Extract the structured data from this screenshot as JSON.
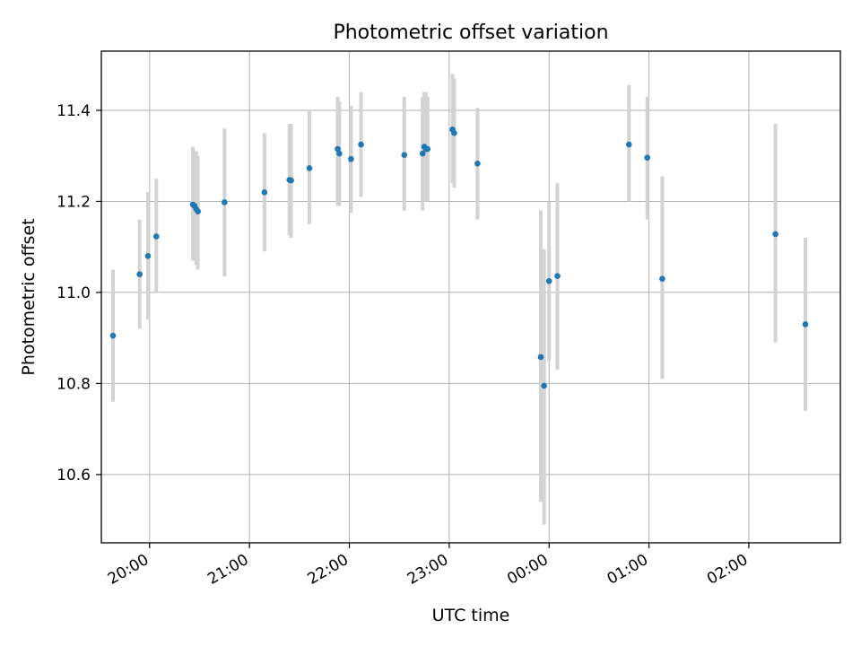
{
  "chart_data": {
    "type": "scatter",
    "title": "Photometric offset variation",
    "xlabel": "UTC time",
    "ylabel": "Photometric offset",
    "x_ticks": [
      "20:00",
      "21:00",
      "22:00",
      "23:00",
      "00:00",
      "01:00",
      "02:00"
    ],
    "y_ticks": [
      "10.6",
      "10.8",
      "11.0",
      "11.2",
      "11.4"
    ],
    "xlim": [
      "19:31",
      "02:55"
    ],
    "ylim": [
      10.45,
      11.53
    ],
    "grid": true,
    "legend": "none",
    "colors": {
      "points": "#1f77b4",
      "error_bars": "#d3d3d3",
      "grid": "#b0b0b0"
    },
    "points": [
      {
        "t": "19:38",
        "y": 10.905,
        "lo": 10.76,
        "hi": 11.05
      },
      {
        "t": "19:54",
        "y": 11.04,
        "lo": 10.92,
        "hi": 11.16
      },
      {
        "t": "19:59",
        "y": 11.08,
        "lo": 10.94,
        "hi": 11.22
      },
      {
        "t": "20:04",
        "y": 11.123,
        "lo": 11.0,
        "hi": 11.25
      },
      {
        "t": "20:26",
        "y": 11.193,
        "lo": 11.07,
        "hi": 11.32
      },
      {
        "t": "20:27",
        "y": 11.19,
        "lo": 11.07,
        "hi": 11.31
      },
      {
        "t": "20:28",
        "y": 11.183,
        "lo": 11.06,
        "hi": 11.31
      },
      {
        "t": "20:29",
        "y": 11.178,
        "lo": 11.05,
        "hi": 11.3
      },
      {
        "t": "20:45",
        "y": 11.198,
        "lo": 11.035,
        "hi": 11.36
      },
      {
        "t": "21:09",
        "y": 11.22,
        "lo": 11.09,
        "hi": 11.35
      },
      {
        "t": "21:24",
        "y": 11.247,
        "lo": 11.125,
        "hi": 11.37
      },
      {
        "t": "21:25",
        "y": 11.246,
        "lo": 11.12,
        "hi": 11.37
      },
      {
        "t": "21:36",
        "y": 11.273,
        "lo": 11.15,
        "hi": 11.4
      },
      {
        "t": "21:53",
        "y": 11.315,
        "lo": 11.19,
        "hi": 11.43
      },
      {
        "t": "21:54",
        "y": 11.305,
        "lo": 11.19,
        "hi": 11.42
      },
      {
        "t": "22:01",
        "y": 11.293,
        "lo": 11.175,
        "hi": 11.41
      },
      {
        "t": "22:07",
        "y": 11.325,
        "lo": 11.21,
        "hi": 11.44
      },
      {
        "t": "22:33",
        "y": 11.302,
        "lo": 11.18,
        "hi": 11.43
      },
      {
        "t": "22:44",
        "y": 11.305,
        "lo": 11.18,
        "hi": 11.43
      },
      {
        "t": "22:45",
        "y": 11.32,
        "lo": 11.2,
        "hi": 11.44
      },
      {
        "t": "22:46",
        "y": 11.315,
        "lo": 11.2,
        "hi": 11.44
      },
      {
        "t": "22:47",
        "y": 11.315,
        "lo": 11.2,
        "hi": 11.43
      },
      {
        "t": "23:02",
        "y": 11.358,
        "lo": 11.24,
        "hi": 11.48
      },
      {
        "t": "23:03",
        "y": 11.35,
        "lo": 11.23,
        "hi": 11.47
      },
      {
        "t": "23:17",
        "y": 11.283,
        "lo": 11.16,
        "hi": 11.405
      },
      {
        "t": "23:55",
        "y": 10.858,
        "lo": 10.54,
        "hi": 11.18
      },
      {
        "t": "23:57",
        "y": 10.795,
        "lo": 10.49,
        "hi": 11.095
      },
      {
        "t": "00:00",
        "y": 11.025,
        "lo": 10.85,
        "hi": 11.2
      },
      {
        "t": "00:05",
        "y": 11.036,
        "lo": 10.83,
        "hi": 11.24
      },
      {
        "t": "00:48",
        "y": 11.325,
        "lo": 11.2,
        "hi": 11.455
      },
      {
        "t": "00:59",
        "y": 11.296,
        "lo": 11.16,
        "hi": 11.43
      },
      {
        "t": "01:08",
        "y": 11.03,
        "lo": 10.81,
        "hi": 11.255
      },
      {
        "t": "02:16",
        "y": 11.128,
        "lo": 10.89,
        "hi": 11.37
      },
      {
        "t": "02:34",
        "y": 10.93,
        "lo": 10.74,
        "hi": 11.12
      }
    ]
  }
}
